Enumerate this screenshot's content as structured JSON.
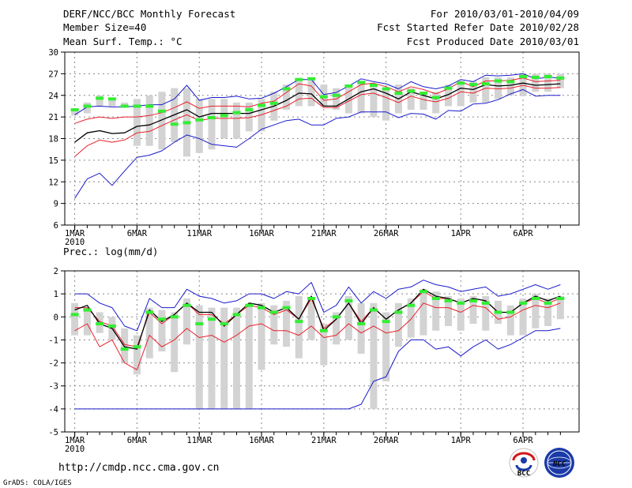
{
  "header": {
    "title": "DERF/NCC/BCC Monthly Forecast",
    "member_size": "Member Size=40",
    "variable": "Mean Surf. Temp.: °C",
    "period": "For 2010/03/01-2010/04/09",
    "start_date": "Fcst Started Refer Date 2010/02/28",
    "produced_date": "Fcst Produced Date 2010/03/01"
  },
  "footer": {
    "url": "http://cmdp.ncc.cma.gov.cn",
    "grads": "GrADS: COLA/IGES",
    "logo_bcc": "BCC",
    "logo_ncc": "NCC"
  },
  "colors": {
    "median": "#000000",
    "red_percentile": "#e8202a",
    "blue_envelope": "#1a1acc",
    "green_obs": "#33ee33",
    "box": "#d3d3d3",
    "grid": "#888888"
  },
  "chart_data": [
    {
      "type": "line",
      "title": "Mean Surf. Temp.: °C",
      "x_tick_labels": [
        "1MAR",
        "6MAR",
        "11MAR",
        "16MAR",
        "21MAR",
        "26MAR",
        "1APR",
        "6APR"
      ],
      "x_tick_days": [
        1,
        6,
        11,
        16,
        21,
        26,
        32,
        37
      ],
      "year_label": "2010",
      "ylim": [
        6,
        30
      ],
      "yticks": [
        6,
        9,
        12,
        15,
        18,
        21,
        24,
        27,
        30
      ],
      "days": [
        1,
        2,
        3,
        4,
        5,
        6,
        7,
        8,
        9,
        10,
        11,
        12,
        13,
        14,
        15,
        16,
        17,
        18,
        19,
        20,
        21,
        22,
        23,
        24,
        25,
        26,
        27,
        28,
        29,
        30,
        31,
        32,
        33,
        34,
        35,
        36,
        37,
        38,
        39,
        40
      ],
      "box_low": [
        21.2,
        21.5,
        22.5,
        22.5,
        22.5,
        17.0,
        17.0,
        16.5,
        17.5,
        15.5,
        16.0,
        16.5,
        18.0,
        18.0,
        19.0,
        19.0,
        20.5,
        22.0,
        22.5,
        22.5,
        22.5,
        22.0,
        21.5,
        21.5,
        21.0,
        20.5,
        21.5,
        22.0,
        22.0,
        21.5,
        22.5,
        22.5,
        23.0,
        23.0,
        23.5,
        24.0,
        24.0,
        24.5,
        24.5,
        25.0
      ],
      "box_high": [
        22.0,
        23.0,
        24.0,
        23.5,
        23.0,
        23.5,
        24.0,
        24.5,
        25.0,
        25.0,
        23.5,
        23.5,
        23.5,
        23.0,
        23.0,
        23.5,
        24.5,
        25.5,
        26.0,
        26.5,
        25.5,
        25.0,
        25.5,
        26.0,
        25.5,
        25.0,
        25.5,
        25.0,
        24.5,
        24.5,
        25.5,
        26.0,
        26.0,
        26.5,
        26.5,
        26.5,
        27.0,
        27.0,
        27.0,
        27.0
      ],
      "median": [
        17.5,
        18.8,
        19.1,
        18.7,
        18.8,
        19.7,
        19.9,
        20.6,
        21.3,
        22.0,
        21.0,
        21.5,
        21.5,
        21.5,
        21.5,
        22.0,
        22.5,
        23.3,
        24.3,
        24.2,
        22.5,
        22.5,
        23.5,
        24.5,
        24.9,
        24.3,
        23.5,
        24.5,
        24.0,
        23.5,
        24.1,
        25.0,
        24.8,
        25.5,
        25.3,
        25.4,
        25.7,
        25.4,
        25.5,
        25.6
      ],
      "red_upper": [
        20.1,
        20.7,
        21.0,
        20.8,
        21.0,
        21.0,
        21.2,
        21.6,
        22.3,
        23.1,
        22.2,
        22.5,
        22.5,
        22.5,
        22.4,
        22.9,
        23.2,
        24.4,
        25.6,
        25.3,
        23.3,
        23.5,
        24.5,
        25.5,
        25.7,
        25.2,
        24.5,
        25.2,
        24.8,
        24.2,
        24.9,
        25.9,
        25.2,
        26.0,
        26.0,
        26.1,
        26.4,
        25.9,
        26.0,
        26.1
      ],
      "red_lower": [
        15.5,
        17.0,
        17.8,
        17.5,
        17.8,
        18.8,
        19.0,
        19.8,
        20.6,
        21.3,
        20.5,
        20.8,
        20.8,
        20.8,
        20.9,
        21.3,
        21.9,
        22.5,
        23.5,
        23.6,
        22.3,
        22.3,
        23.2,
        24.1,
        24.3,
        23.7,
        23.0,
        23.9,
        23.4,
        23.1,
        23.6,
        24.5,
        24.3,
        25.0,
        24.9,
        25.0,
        25.4,
        25.0,
        25.0,
        25.1
      ],
      "blue_upper": [
        21.3,
        22.4,
        22.5,
        22.4,
        22.4,
        22.5,
        22.7,
        22.7,
        23.5,
        25.4,
        23.3,
        23.7,
        23.7,
        23.9,
        23.5,
        23.6,
        24.3,
        25.2,
        26.2,
        26.2,
        24.1,
        24.4,
        25.3,
        26.3,
        25.9,
        25.6,
        24.9,
        25.9,
        25.2,
        24.9,
        25.3,
        26.2,
        25.9,
        26.8,
        26.7,
        26.8,
        27.0,
        26.3,
        26.5,
        26.4
      ],
      "blue_lower": [
        9.7,
        12.4,
        13.2,
        11.5,
        13.5,
        15.4,
        15.7,
        16.3,
        17.5,
        18.5,
        18.0,
        17.2,
        17.0,
        16.8,
        18.0,
        19.3,
        19.9,
        20.5,
        20.7,
        19.9,
        19.9,
        20.8,
        21.0,
        21.7,
        21.7,
        21.7,
        20.9,
        21.5,
        21.4,
        20.7,
        21.9,
        21.8,
        22.8,
        22.9,
        23.4,
        24.2,
        24.8,
        23.9,
        24.0,
        24.0
      ],
      "green_obs": [
        22.0,
        22.5,
        23.6,
        23.5,
        22.5,
        22.5,
        22.5,
        21.8,
        20.0,
        20.2,
        20.6,
        20.9,
        21.2,
        21.6,
        22.0,
        22.6,
        22.9,
        24.9,
        26.2,
        26.3,
        23.8,
        24.0,
        25.3,
        25.8,
        25.4,
        24.9,
        24.3,
        24.6,
        24.3,
        23.7,
        25.0,
        25.7,
        25.5,
        25.6,
        26.0,
        25.9,
        26.6,
        26.5,
        26.6,
        26.4
      ]
    },
    {
      "type": "line",
      "title": "Prec.: log(mm/d)",
      "x_tick_labels": [
        "1MAR",
        "6MAR",
        "11MAR",
        "16MAR",
        "21MAR",
        "26MAR",
        "1APR",
        "6APR"
      ],
      "x_tick_days": [
        1,
        6,
        11,
        16,
        21,
        26,
        32,
        37
      ],
      "year_label": "2010",
      "ylim": [
        -5,
        2
      ],
      "yticks": [
        -5,
        -4,
        -3,
        -2,
        -1,
        0,
        1,
        2
      ],
      "days": [
        1,
        2,
        3,
        4,
        5,
        6,
        7,
        8,
        9,
        10,
        11,
        12,
        13,
        14,
        15,
        16,
        17,
        18,
        19,
        20,
        21,
        22,
        23,
        24,
        25,
        26,
        27,
        28,
        29,
        30,
        31,
        32,
        33,
        34,
        35,
        36,
        37,
        38,
        39,
        40
      ],
      "box_low": [
        -0.8,
        -0.8,
        -0.7,
        -1.0,
        -2.0,
        -2.5,
        -1.8,
        -1.5,
        -2.4,
        -1.2,
        -4.0,
        -4.0,
        -4.0,
        -4.0,
        -4.0,
        -2.3,
        -1.2,
        -1.3,
        -1.8,
        -1.0,
        -2.1,
        -1.2,
        -1.0,
        -1.6,
        -4.0,
        -2.8,
        -1.3,
        -0.9,
        -0.8,
        -0.6,
        -0.4,
        -0.6,
        -0.3,
        -0.6,
        -0.3,
        -0.8,
        -0.8,
        -0.5,
        -0.4,
        -0.1
      ],
      "box_high": [
        0.6,
        0.4,
        0.2,
        0.0,
        -0.5,
        -0.8,
        0.4,
        0.3,
        0.2,
        0.8,
        0.5,
        0.4,
        0.4,
        0.4,
        0.5,
        0.6,
        0.5,
        0.7,
        0.9,
        0.8,
        -0.3,
        0.2,
        0.9,
        0.6,
        0.6,
        0.2,
        0.6,
        0.8,
        1.2,
        1.1,
        0.9,
        0.8,
        0.9,
        0.9,
        0.7,
        0.5,
        0.8,
        1.0,
        0.8,
        0.9
      ],
      "median": [
        0.3,
        0.5,
        -0.3,
        -0.5,
        -1.3,
        -1.4,
        0.3,
        -0.2,
        0.1,
        0.6,
        0.2,
        0.2,
        -0.4,
        0.1,
        0.6,
        0.5,
        0.2,
        0.4,
        -0.1,
        0.9,
        -0.6,
        -0.1,
        0.6,
        -0.3,
        0.4,
        -0.1,
        0.3,
        0.6,
        1.2,
        0.9,
        0.8,
        0.6,
        0.8,
        0.7,
        0.2,
        0.2,
        0.6,
        0.9,
        0.7,
        0.9
      ],
      "red_upper": [
        0.4,
        0.4,
        -0.2,
        -0.4,
        -1.2,
        -1.3,
        0.2,
        -0.3,
        0.1,
        0.6,
        0.1,
        0.1,
        -0.3,
        0.1,
        0.5,
        0.4,
        0.1,
        0.3,
        -0.1,
        0.8,
        -0.5,
        -0.1,
        0.6,
        -0.2,
        0.4,
        -0.1,
        0.3,
        0.6,
        1.1,
        0.8,
        0.8,
        0.6,
        0.8,
        0.7,
        0.2,
        0.2,
        0.6,
        0.8,
        0.6,
        0.8
      ],
      "red_lower": [
        -0.6,
        -0.3,
        -1.3,
        -1.0,
        -2.0,
        -2.3,
        -0.8,
        -1.3,
        -1.0,
        -0.5,
        -0.9,
        -0.8,
        -1.1,
        -0.8,
        -0.4,
        -0.3,
        -0.6,
        -0.6,
        -0.8,
        -0.4,
        -0.9,
        -0.8,
        -0.3,
        -0.7,
        -0.4,
        -0.7,
        -0.6,
        -0.1,
        0.6,
        0.4,
        0.4,
        0.2,
        0.5,
        0.4,
        -0.1,
        0.0,
        0.3,
        0.5,
        0.4,
        0.6
      ],
      "blue_upper": [
        1.0,
        1.0,
        0.6,
        0.4,
        -0.4,
        -0.6,
        0.8,
        0.4,
        0.4,
        1.2,
        0.9,
        0.8,
        0.6,
        0.7,
        1.0,
        1.0,
        0.8,
        1.1,
        1.0,
        1.5,
        0.2,
        0.5,
        1.3,
        0.6,
        1.1,
        0.8,
        1.2,
        1.3,
        1.6,
        1.4,
        1.3,
        1.1,
        1.2,
        1.3,
        0.9,
        1.0,
        1.2,
        1.4,
        1.2,
        1.4
      ],
      "blue_lower": [
        -4.0,
        -4.0,
        -4.0,
        -4.0,
        -4.0,
        -4.0,
        -4.0,
        -4.0,
        -4.0,
        -4.0,
        -4.0,
        -4.0,
        -4.0,
        -4.0,
        -4.0,
        -4.0,
        -4.0,
        -4.0,
        -4.0,
        -4.0,
        -4.0,
        -4.0,
        -4.0,
        -3.8,
        -2.8,
        -2.6,
        -1.5,
        -1.0,
        -1.0,
        -1.4,
        -1.3,
        -1.7,
        -1.3,
        -1.0,
        -1.4,
        -1.2,
        -0.9,
        -0.6,
        -0.6,
        -0.5
      ],
      "green_obs": [
        0.1,
        0.3,
        -0.3,
        -0.4,
        -1.4,
        -1.3,
        0.2,
        -0.1,
        0.0,
        0.5,
        -0.3,
        -0.1,
        -0.3,
        0.1,
        0.5,
        0.4,
        0.2,
        0.4,
        -0.2,
        0.8,
        -0.6,
        0.0,
        0.7,
        -0.3,
        0.3,
        -0.2,
        0.2,
        0.5,
        1.1,
        0.8,
        0.7,
        0.6,
        0.7,
        0.6,
        0.2,
        0.2,
        0.6,
        0.8,
        0.6,
        0.8
      ]
    }
  ]
}
